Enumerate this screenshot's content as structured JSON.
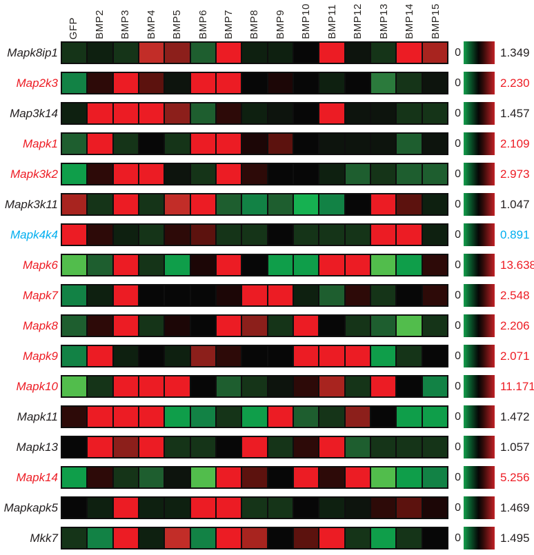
{
  "figure": {
    "label_colors": {
      "black": "#231f20",
      "red": "#ed1c24",
      "blue": "#00aeef"
    }
  },
  "chart_data": {
    "type": "heatmap",
    "title": "",
    "columns": [
      "GFP",
      "BMP2",
      "BMP3",
      "BMP4",
      "BMP5",
      "BMP6",
      "BMP7",
      "BMP8",
      "BMP9",
      "BMP10",
      "BMP11",
      "BMP12",
      "BMP13",
      "BMP14",
      "BMP15"
    ],
    "color_scale": {
      "min_label": "0",
      "gradient_stops": [
        "#14a04c 0%",
        "#0a5c2e 20%",
        "#050505 48%",
        "#2e0a08 62%",
        "#c22126 100%"
      ],
      "legend_note": "green-black-red scale shown per row, 0 at left, row maximum at right"
    },
    "palette": {
      "R": "#ec1c24",
      "r1": "#c22d28",
      "r2": "#a8241f",
      "r3": "#8c1f1b",
      "r4": "#5c120e",
      "m1": "#2d0a08",
      "m2": "#1c0606",
      "K": "#070707",
      "k1": "#0d140d",
      "gk": "#0e2010",
      "g4": "#153418",
      "g3": "#1e5e2f",
      "g3b": "#2b7a3c",
      "g2": "#0f9e4a",
      "g2d": "#128245",
      "gb": "#16b151",
      "G": "#52bd4c"
    },
    "rows": [
      {
        "gene": "Mapk8ip1",
        "color": "black",
        "max_value": "1.349",
        "cells": [
          "g4",
          "gk",
          "g4",
          "r1",
          "r3",
          "g3",
          "R",
          "gk",
          "gk",
          "K",
          "R",
          "k1",
          "g4",
          "R",
          "r2"
        ]
      },
      {
        "gene": "Map2k3",
        "color": "red",
        "max_value": "2.230",
        "cells": [
          "g2d",
          "m1",
          "R",
          "r4",
          "k1",
          "R",
          "R",
          "K",
          "m2",
          "K",
          "gk",
          "K",
          "g3b",
          "g4",
          "k1"
        ]
      },
      {
        "gene": "Map3k14",
        "color": "black",
        "max_value": "1.457",
        "cells": [
          "gk",
          "R",
          "R",
          "R",
          "r3",
          "g3",
          "m1",
          "gk",
          "k1",
          "K",
          "R",
          "k1",
          "k1",
          "g4",
          "g4"
        ]
      },
      {
        "gene": "Mapk1",
        "color": "red",
        "max_value": "2.109",
        "cells": [
          "g3",
          "R",
          "g4",
          "K",
          "g4",
          "R",
          "R",
          "m2",
          "r4",
          "K",
          "k1",
          "k1",
          "k1",
          "g3",
          "k1"
        ]
      },
      {
        "gene": "Mapk3k2",
        "color": "red",
        "max_value": "2.973",
        "cells": [
          "g2",
          "m1",
          "R",
          "R",
          "k1",
          "g4",
          "R",
          "m1",
          "K",
          "K",
          "gk",
          "g3",
          "g4",
          "g3",
          "g3"
        ]
      },
      {
        "gene": "Mapk3k11",
        "color": "black",
        "max_value": "1.047",
        "cells": [
          "r2",
          "g4",
          "R",
          "g4",
          "r1",
          "R",
          "g3",
          "g2d",
          "g3",
          "gb",
          "g2d",
          "K",
          "R",
          "r4",
          "gk"
        ]
      },
      {
        "gene": "Mapk4k4",
        "color": "blue",
        "max_value": "0.891",
        "cells": [
          "R",
          "m1",
          "gk",
          "g4",
          "m1",
          "r4",
          "g4",
          "g4",
          "K",
          "g4",
          "g4",
          "g4",
          "R",
          "R",
          "gk"
        ]
      },
      {
        "gene": "Mapk6",
        "color": "red",
        "max_value": "13.638",
        "cells": [
          "G",
          "g3",
          "R",
          "g4",
          "g2",
          "m2",
          "R",
          "K",
          "g2",
          "g2",
          "R",
          "R",
          "G",
          "g2",
          "m1"
        ]
      },
      {
        "gene": "Mapk7",
        "color": "red",
        "max_value": "2.548",
        "cells": [
          "g2d",
          "gk",
          "R",
          "K",
          "K",
          "K",
          "m2",
          "R",
          "R",
          "gk",
          "g3",
          "m1",
          "g4",
          "K",
          "m1"
        ]
      },
      {
        "gene": "Mapk8",
        "color": "red",
        "max_value": "2.206",
        "cells": [
          "g3",
          "m1",
          "R",
          "g4",
          "m2",
          "K",
          "R",
          "r3",
          "g4",
          "R",
          "K",
          "g4",
          "g3",
          "G",
          "g4"
        ]
      },
      {
        "gene": "Mapk9",
        "color": "red",
        "max_value": "2.071",
        "cells": [
          "g2d",
          "R",
          "gk",
          "K",
          "gk",
          "r3",
          "m1",
          "K",
          "K",
          "R",
          "R",
          "R",
          "g2",
          "g4",
          "K"
        ]
      },
      {
        "gene": "Mapk10",
        "color": "red",
        "max_value": "11.171",
        "cells": [
          "G",
          "g4",
          "R",
          "R",
          "R",
          "K",
          "g3",
          "g4",
          "k1",
          "m1",
          "r2",
          "g4",
          "R",
          "K",
          "g2d"
        ]
      },
      {
        "gene": "Mapk11",
        "color": "black",
        "max_value": "1.472",
        "cells": [
          "m1",
          "R",
          "R",
          "R",
          "g2",
          "g2d",
          "g4",
          "g2",
          "R",
          "g3",
          "g4",
          "r3",
          "K",
          "g2",
          "g2"
        ]
      },
      {
        "gene": "Mapk13",
        "color": "black",
        "max_value": "1.057",
        "cells": [
          "K",
          "R",
          "r3",
          "R",
          "g4",
          "g4",
          "K",
          "R",
          "g4",
          "m1",
          "R",
          "g3",
          "g4",
          "g4",
          "g4"
        ]
      },
      {
        "gene": "Mapk14",
        "color": "red",
        "max_value": "5.256",
        "cells": [
          "g2",
          "m1",
          "g4",
          "g3",
          "k1",
          "G",
          "R",
          "r4",
          "K",
          "R",
          "m1",
          "R",
          "G",
          "g2",
          "g2d"
        ]
      },
      {
        "gene": "Mapkapk5",
        "color": "black",
        "max_value": "1.469",
        "cells": [
          "K",
          "gk",
          "R",
          "gk",
          "gk",
          "R",
          "R",
          "g4",
          "g4",
          "K",
          "gk",
          "k1",
          "m1",
          "r4",
          "m2"
        ]
      },
      {
        "gene": "Mkk7",
        "color": "black",
        "max_value": "1.495",
        "cells": [
          "g4",
          "g2d",
          "R",
          "gk",
          "r1",
          "g2d",
          "R",
          "r2",
          "K",
          "r4",
          "R",
          "g4",
          "g2",
          "g4",
          "K"
        ]
      }
    ]
  }
}
